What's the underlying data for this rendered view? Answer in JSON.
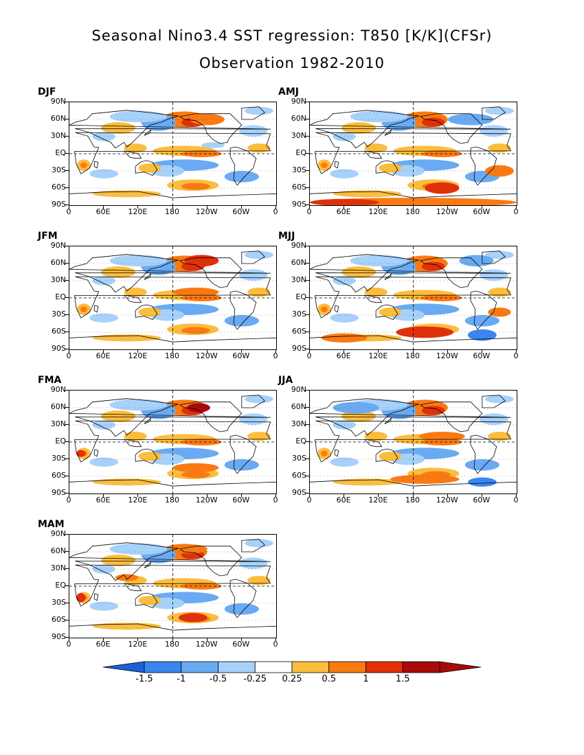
{
  "title": "Seasonal Nino3.4 SST regression: T850 [K/K](CFSr)",
  "subtitle": "Observation 1982-2010",
  "panels": [
    {
      "label": "DJF",
      "col": 0,
      "row": 0
    },
    {
      "label": "AMJ",
      "col": 1,
      "row": 0
    },
    {
      "label": "JFM",
      "col": 0,
      "row": 1
    },
    {
      "label": "MJJ",
      "col": 1,
      "row": 1
    },
    {
      "label": "FMA",
      "col": 0,
      "row": 2
    },
    {
      "label": "JJA",
      "col": 1,
      "row": 2
    },
    {
      "label": "MAM",
      "col": 0,
      "row": 3
    }
  ],
  "axes": {
    "lat_labels": [
      "90N",
      "60N",
      "30N",
      "EQ",
      "30S",
      "60S",
      "90S"
    ],
    "lon_labels": [
      "0",
      "60E",
      "120E",
      "180",
      "120W",
      "60W",
      "0"
    ]
  },
  "colorbar": {
    "levels": [
      "-1.5",
      "-1",
      "-0.5",
      "-0.25",
      "0.25",
      "0.5",
      "1",
      "1.5"
    ],
    "colors": [
      "#1e5fd8",
      "#3a86ee",
      "#6aaaf2",
      "#a6d1fa",
      "#ffffff",
      "#fbbd3e",
      "#f97a12",
      "#e0300a",
      "#a80a0a"
    ]
  },
  "chart_data": {
    "type": "heatmap",
    "title": "Seasonal Nino3.4 SST regression: T850 [K/K](CFSr)",
    "subtitle": "Observation 1982-2010",
    "panels": [
      "DJF",
      "AMJ",
      "JFM",
      "MJJ",
      "FMA",
      "JJA",
      "MAM"
    ],
    "x_ticks": [
      "0",
      "60E",
      "120E",
      "180",
      "120W",
      "60W",
      "0"
    ],
    "y_ticks": [
      "90N",
      "60N",
      "30N",
      "EQ",
      "30S",
      "60S",
      "90S"
    ],
    "contour_levels": [
      -1.5,
      -1,
      -0.5,
      -0.25,
      0.25,
      0.5,
      1,
      1.5
    ],
    "units": "K/K"
  }
}
